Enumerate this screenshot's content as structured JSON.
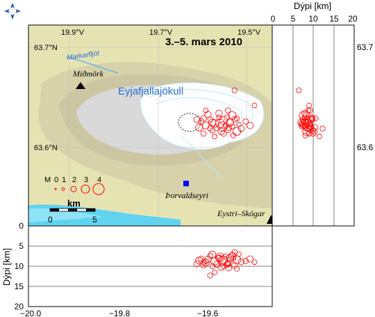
{
  "map": {
    "title": "3.–5. mars 2010",
    "glacier_label": "Eyjafjallajökull",
    "river_label": "Markarfljót",
    "places": [
      {
        "name": "Miðmörk",
        "symbol": "triangle"
      },
      {
        "name": "Þorvaldseyri",
        "symbol": "square"
      },
      {
        "name": "Eystri–Skógar",
        "symbol": "triangle"
      }
    ],
    "lon_labels_top": [
      "19.9°V",
      "19.7°V",
      "19.5°V"
    ],
    "lat_labels": [
      "63.7°N",
      "63.6°N"
    ],
    "magnitude_legend": {
      "prefix": "M",
      "values": [
        "0",
        "1",
        "2",
        "3",
        "4"
      ]
    },
    "scale_bar": {
      "unit": "km",
      "labels": [
        "0",
        "5"
      ]
    },
    "colors": {
      "land": "#e8e2b0",
      "relief": "#cfc7a0",
      "glacier": "#ffffff",
      "ice_outline": "#bfe6f5",
      "sea": "#5fd3f0",
      "events": "#ff0000",
      "station_square": "#0000ff"
    }
  },
  "right_panel": {
    "xlabel": "Dýpi [km]",
    "x_ticks": [
      "0",
      "5",
      "10",
      "15",
      "20"
    ],
    "y_ticks": [
      "63.7",
      "63.6"
    ]
  },
  "bottom_panel": {
    "ylabel": "Dýpi [km]",
    "y_ticks": [
      "0",
      "5",
      "10",
      "15",
      "20"
    ],
    "x_ticks": [
      "−20.0",
      "−19.8",
      "−19.6"
    ]
  },
  "chart_data": {
    "type": "scatter",
    "description_ranges": {
      "lon": [
        -20.0,
        -19.45
      ],
      "lat": [
        63.53,
        63.73
      ],
      "depth_km": [
        0,
        20
      ]
    },
    "events": [
      {
        "lon": -19.61,
        "lat": 63.634,
        "depth": 8.2,
        "mag": 1.2
      },
      {
        "lon": -19.6,
        "lat": 63.63,
        "depth": 9.1,
        "mag": 1.6
      },
      {
        "lon": -19.59,
        "lat": 63.636,
        "depth": 7.4,
        "mag": 1.0
      },
      {
        "lon": -19.58,
        "lat": 63.632,
        "depth": 8.8,
        "mag": 1.8
      },
      {
        "lon": -19.575,
        "lat": 63.628,
        "depth": 9.5,
        "mag": 1.3
      },
      {
        "lon": -19.57,
        "lat": 63.638,
        "depth": 7.9,
        "mag": 0.9
      },
      {
        "lon": -19.565,
        "lat": 63.624,
        "depth": 10.2,
        "mag": 1.5
      },
      {
        "lon": -19.56,
        "lat": 63.635,
        "depth": 8.5,
        "mag": 2.0
      },
      {
        "lon": -19.555,
        "lat": 63.63,
        "depth": 7.6,
        "mag": 1.1
      },
      {
        "lon": -19.55,
        "lat": 63.626,
        "depth": 9.3,
        "mag": 1.4
      },
      {
        "lon": -19.545,
        "lat": 63.633,
        "depth": 8.0,
        "mag": 1.7
      },
      {
        "lon": -19.54,
        "lat": 63.629,
        "depth": 7.2,
        "mag": 1.0
      },
      {
        "lon": -19.535,
        "lat": 63.636,
        "depth": 9.8,
        "mag": 1.2
      },
      {
        "lon": -19.53,
        "lat": 63.624,
        "depth": 8.4,
        "mag": 1.9
      },
      {
        "lon": -19.525,
        "lat": 63.631,
        "depth": 7.0,
        "mag": 0.8
      },
      {
        "lon": -19.52,
        "lat": 63.627,
        "depth": 8.9,
        "mag": 1.3
      },
      {
        "lon": -19.605,
        "lat": 63.622,
        "depth": 9.0,
        "mag": 1.1
      },
      {
        "lon": -19.595,
        "lat": 63.641,
        "depth": 8.3,
        "mag": 1.4
      },
      {
        "lon": -19.585,
        "lat": 63.625,
        "depth": 10.0,
        "mag": 1.0
      },
      {
        "lon": -19.615,
        "lat": 63.628,
        "depth": 8.6,
        "mag": 1.6
      },
      {
        "lon": -19.568,
        "lat": 63.632,
        "depth": 7.8,
        "mag": 2.2
      },
      {
        "lon": -19.552,
        "lat": 63.638,
        "depth": 9.6,
        "mag": 1.2
      },
      {
        "lon": -19.538,
        "lat": 63.62,
        "depth": 8.1,
        "mag": 1.0
      },
      {
        "lon": -19.58,
        "lat": 63.619,
        "depth": 11.5,
        "mag": 0.9
      },
      {
        "lon": -19.51,
        "lat": 63.634,
        "depth": 8.7,
        "mag": 1.1
      },
      {
        "lon": -19.62,
        "lat": 63.636,
        "depth": 9.4,
        "mag": 1.3
      },
      {
        "lon": -19.59,
        "lat": 63.627,
        "depth": 12.3,
        "mag": 1.0
      },
      {
        "lon": -19.57,
        "lat": 63.642,
        "depth": 8.0,
        "mag": 1.5
      },
      {
        "lon": -19.56,
        "lat": 63.622,
        "depth": 9.9,
        "mag": 1.2
      },
      {
        "lon": -19.54,
        "lat": 63.64,
        "depth": 7.5,
        "mag": 1.8
      },
      {
        "lon": -19.53,
        "lat": 63.637,
        "depth": 10.6,
        "mag": 1.0
      },
      {
        "lon": -19.5,
        "lat": 63.63,
        "depth": 8.2,
        "mag": 1.4
      },
      {
        "lon": -19.6,
        "lat": 63.645,
        "depth": 8.8,
        "mag": 0.9
      },
      {
        "lon": -19.55,
        "lat": 63.645,
        "depth": 9.2,
        "mag": 1.1
      },
      {
        "lon": -19.535,
        "lat": 63.665,
        "depth": 6.5,
        "mag": 1.0
      },
      {
        "lon": -19.49,
        "lat": 63.65,
        "depth": 9.0,
        "mag": 0.9
      },
      {
        "lon": -19.585,
        "lat": 63.633,
        "depth": 7.1,
        "mag": 1.6
      },
      {
        "lon": -19.548,
        "lat": 63.628,
        "depth": 10.4,
        "mag": 1.3
      },
      {
        "lon": -19.562,
        "lat": 63.629,
        "depth": 8.6,
        "mag": 2.4
      },
      {
        "lon": -19.605,
        "lat": 63.637,
        "depth": 9.7,
        "mag": 1.2
      }
    ]
  }
}
